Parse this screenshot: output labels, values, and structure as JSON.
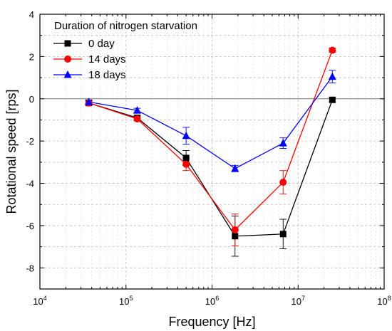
{
  "chart_data": {
    "type": "line",
    "xlabel": "Frequency [Hz]",
    "ylabel": "Rotational speed [rps]",
    "x_scale": "log",
    "xlim": [
      10000,
      100000000
    ],
    "ylim": [
      -9,
      4
    ],
    "x_ticks": [
      {
        "value": 10000,
        "base": "10",
        "exp": "4"
      },
      {
        "value": 100000,
        "base": "10",
        "exp": "5"
      },
      {
        "value": 1000000,
        "base": "10",
        "exp": "6"
      },
      {
        "value": 10000000,
        "base": "10",
        "exp": "7"
      },
      {
        "value": 100000000,
        "base": "10",
        "exp": "8"
      }
    ],
    "y_ticks": [
      {
        "value": 4,
        "label": "4"
      },
      {
        "value": 2,
        "label": "2"
      },
      {
        "value": 0,
        "label": "0"
      },
      {
        "value": -2,
        "label": "-2"
      },
      {
        "value": -4,
        "label": "-4"
      },
      {
        "value": -6,
        "label": "-6"
      },
      {
        "value": -8,
        "label": "-8"
      }
    ],
    "grid": true,
    "legend": {
      "title": "Duration of nitrogen starvation",
      "position": "top-left"
    },
    "x": [
      37000,
      135000,
      500000,
      1850000,
      6700000,
      25000000
    ],
    "series": [
      {
        "name": "0 day",
        "marker": "square",
        "color": "#000000",
        "y": [
          -0.2,
          -0.9,
          -2.8,
          -6.5,
          -6.4,
          -0.05
        ],
        "err": [
          0.1,
          0.1,
          0.35,
          0.95,
          0.7,
          0.1
        ]
      },
      {
        "name": "14 days",
        "marker": "circle",
        "color": "#ff0000",
        "y": [
          -0.2,
          -0.95,
          -3.1,
          -6.2,
          -3.95,
          2.3
        ],
        "err": [
          0.1,
          0.1,
          0.3,
          0.75,
          0.55,
          0.1
        ]
      },
      {
        "name": "18 days",
        "marker": "triangle",
        "color": "#0000ff",
        "y": [
          -0.15,
          -0.55,
          -1.75,
          -3.3,
          -2.1,
          1.05
        ],
        "err": [
          0.1,
          0.1,
          0.4,
          0.15,
          0.25,
          0.3
        ]
      }
    ]
  }
}
